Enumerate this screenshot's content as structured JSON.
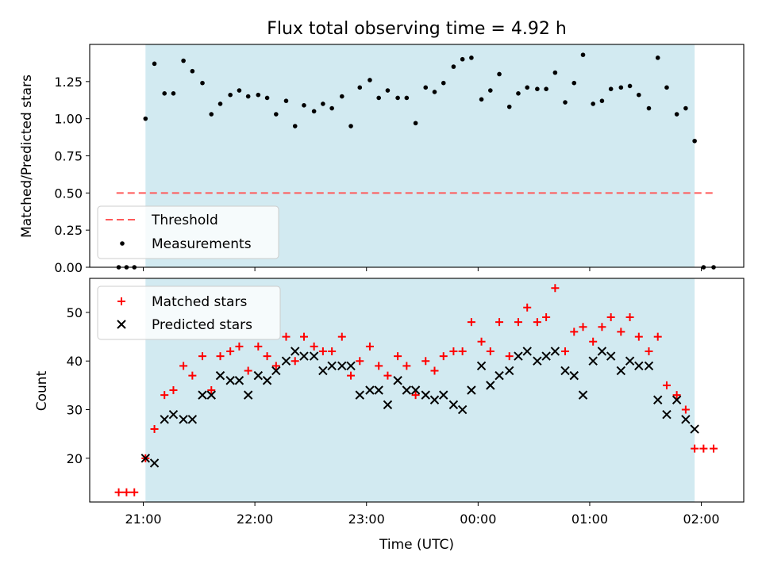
{
  "title": "Flux total observing time = 4.92 h",
  "colors": {
    "observing_window": "#add8e6",
    "threshold": "#ff5a5a",
    "measurement": "#000000",
    "matched": "#ff0000",
    "predicted": "#000000"
  },
  "shared_x": {
    "label": "Time (UTC)",
    "ticks": [
      "21:00",
      "22:00",
      "23:00",
      "00:00",
      "01:00",
      "02:00"
    ],
    "tick_hours": [
      21,
      22,
      23,
      24,
      25,
      26
    ],
    "range_hours": [
      20.52,
      26.38
    ],
    "observing_window_hours": [
      21.02,
      25.94
    ]
  },
  "chart_data": [
    {
      "type": "scatter",
      "ylabel": "Matched/Predicted stars",
      "ylim": [
        0,
        1.5
      ],
      "yticks": [
        "0.00",
        "0.25",
        "0.50",
        "0.75",
        "1.00",
        "1.25"
      ],
      "ytick_values": [
        0,
        0.25,
        0.5,
        0.75,
        1.0,
        1.25
      ],
      "legend_position": "lower-left",
      "threshold": {
        "name": "Threshold",
        "value": 0.5,
        "x_range_hours": [
          20.76,
          26.12
        ]
      },
      "series": [
        {
          "name": "Measurements",
          "points": [
            [
              20.78,
              0.0
            ],
            [
              20.85,
              0.0
            ],
            [
              20.92,
              0.0
            ],
            [
              21.02,
              1.0
            ],
            [
              21.1,
              1.37
            ],
            [
              21.19,
              1.17
            ],
            [
              21.27,
              1.17
            ],
            [
              21.36,
              1.39
            ],
            [
              21.44,
              1.32
            ],
            [
              21.53,
              1.24
            ],
            [
              21.61,
              1.03
            ],
            [
              21.69,
              1.1
            ],
            [
              21.78,
              1.16
            ],
            [
              21.86,
              1.19
            ],
            [
              21.94,
              1.15
            ],
            [
              22.03,
              1.16
            ],
            [
              22.11,
              1.14
            ],
            [
              22.19,
              1.03
            ],
            [
              22.28,
              1.12
            ],
            [
              22.36,
              0.95
            ],
            [
              22.44,
              1.09
            ],
            [
              22.53,
              1.05
            ],
            [
              22.61,
              1.1
            ],
            [
              22.69,
              1.07
            ],
            [
              22.78,
              1.15
            ],
            [
              22.86,
              0.95
            ],
            [
              22.94,
              1.21
            ],
            [
              23.03,
              1.26
            ],
            [
              23.11,
              1.14
            ],
            [
              23.19,
              1.19
            ],
            [
              23.28,
              1.14
            ],
            [
              23.36,
              1.14
            ],
            [
              23.44,
              0.97
            ],
            [
              23.53,
              1.21
            ],
            [
              23.61,
              1.18
            ],
            [
              23.69,
              1.24
            ],
            [
              23.78,
              1.35
            ],
            [
              23.86,
              1.4
            ],
            [
              23.94,
              1.41
            ],
            [
              24.03,
              1.13
            ],
            [
              24.11,
              1.19
            ],
            [
              24.19,
              1.3
            ],
            [
              24.28,
              1.08
            ],
            [
              24.36,
              1.17
            ],
            [
              24.44,
              1.21
            ],
            [
              24.53,
              1.2
            ],
            [
              24.61,
              1.2
            ],
            [
              24.69,
              1.31
            ],
            [
              24.78,
              1.11
            ],
            [
              24.86,
              1.24
            ],
            [
              24.94,
              1.43
            ],
            [
              25.03,
              1.1
            ],
            [
              25.11,
              1.12
            ],
            [
              25.19,
              1.2
            ],
            [
              25.28,
              1.21
            ],
            [
              25.36,
              1.22
            ],
            [
              25.44,
              1.16
            ],
            [
              25.53,
              1.07
            ],
            [
              25.61,
              1.41
            ],
            [
              25.69,
              1.21
            ],
            [
              25.78,
              1.03
            ],
            [
              25.86,
              1.07
            ],
            [
              25.94,
              0.85
            ],
            [
              26.02,
              0.0
            ],
            [
              26.11,
              0.0
            ]
          ]
        }
      ]
    },
    {
      "type": "scatter",
      "ylabel": "Count",
      "ylim": [
        11,
        57
      ],
      "yticks": [
        "20",
        "30",
        "40",
        "50"
      ],
      "ytick_values": [
        20,
        30,
        40,
        50
      ],
      "legend_position": "upper-left",
      "series": [
        {
          "name": "Matched stars",
          "marker": "plus",
          "points": [
            [
              20.78,
              13
            ],
            [
              20.85,
              13
            ],
            [
              20.92,
              13
            ],
            [
              21.02,
              20
            ],
            [
              21.1,
              26
            ],
            [
              21.19,
              33
            ],
            [
              21.27,
              34
            ],
            [
              21.36,
              39
            ],
            [
              21.44,
              37
            ],
            [
              21.53,
              41
            ],
            [
              21.61,
              34
            ],
            [
              21.69,
              41
            ],
            [
              21.78,
              42
            ],
            [
              21.86,
              43
            ],
            [
              21.94,
              38
            ],
            [
              22.03,
              43
            ],
            [
              22.11,
              41
            ],
            [
              22.19,
              39
            ],
            [
              22.28,
              45
            ],
            [
              22.36,
              40
            ],
            [
              22.44,
              45
            ],
            [
              22.53,
              43
            ],
            [
              22.61,
              42
            ],
            [
              22.69,
              42
            ],
            [
              22.78,
              45
            ],
            [
              22.86,
              37
            ],
            [
              22.94,
              40
            ],
            [
              23.03,
              43
            ],
            [
              23.11,
              39
            ],
            [
              23.19,
              37
            ],
            [
              23.28,
              41
            ],
            [
              23.36,
              39
            ],
            [
              23.44,
              33
            ],
            [
              23.53,
              40
            ],
            [
              23.61,
              38
            ],
            [
              23.69,
              41
            ],
            [
              23.78,
              42
            ],
            [
              23.86,
              42
            ],
            [
              23.94,
              48
            ],
            [
              24.03,
              44
            ],
            [
              24.11,
              42
            ],
            [
              24.19,
              48
            ],
            [
              24.28,
              41
            ],
            [
              24.36,
              48
            ],
            [
              24.44,
              51
            ],
            [
              24.53,
              48
            ],
            [
              24.61,
              49
            ],
            [
              24.69,
              55
            ],
            [
              24.78,
              42
            ],
            [
              24.86,
              46
            ],
            [
              24.94,
              47
            ],
            [
              25.03,
              44
            ],
            [
              25.11,
              47
            ],
            [
              25.19,
              49
            ],
            [
              25.28,
              46
            ],
            [
              25.36,
              49
            ],
            [
              25.44,
              45
            ],
            [
              25.53,
              42
            ],
            [
              25.61,
              45
            ],
            [
              25.69,
              35
            ],
            [
              25.78,
              33
            ],
            [
              25.86,
              30
            ],
            [
              25.94,
              22
            ],
            [
              26.02,
              22
            ],
            [
              26.11,
              22
            ]
          ]
        },
        {
          "name": "Predicted stars",
          "marker": "cross",
          "points": [
            [
              21.02,
              20
            ],
            [
              21.1,
              19
            ],
            [
              21.19,
              28
            ],
            [
              21.27,
              29
            ],
            [
              21.36,
              28
            ],
            [
              21.44,
              28
            ],
            [
              21.53,
              33
            ],
            [
              21.61,
              33
            ],
            [
              21.69,
              37
            ],
            [
              21.78,
              36
            ],
            [
              21.86,
              36
            ],
            [
              21.94,
              33
            ],
            [
              22.03,
              37
            ],
            [
              22.11,
              36
            ],
            [
              22.19,
              38
            ],
            [
              22.28,
              40
            ],
            [
              22.36,
              42
            ],
            [
              22.44,
              41
            ],
            [
              22.53,
              41
            ],
            [
              22.61,
              38
            ],
            [
              22.69,
              39
            ],
            [
              22.78,
              39
            ],
            [
              22.86,
              39
            ],
            [
              22.94,
              33
            ],
            [
              23.03,
              34
            ],
            [
              23.11,
              34
            ],
            [
              23.19,
              31
            ],
            [
              23.28,
              36
            ],
            [
              23.36,
              34
            ],
            [
              23.44,
              34
            ],
            [
              23.53,
              33
            ],
            [
              23.61,
              32
            ],
            [
              23.69,
              33
            ],
            [
              23.78,
              31
            ],
            [
              23.86,
              30
            ],
            [
              23.94,
              34
            ],
            [
              24.03,
              39
            ],
            [
              24.11,
              35
            ],
            [
              24.19,
              37
            ],
            [
              24.28,
              38
            ],
            [
              24.36,
              41
            ],
            [
              24.44,
              42
            ],
            [
              24.53,
              40
            ],
            [
              24.61,
              41
            ],
            [
              24.69,
              42
            ],
            [
              24.78,
              38
            ],
            [
              24.86,
              37
            ],
            [
              24.94,
              33
            ],
            [
              25.03,
              40
            ],
            [
              25.11,
              42
            ],
            [
              25.19,
              41
            ],
            [
              25.28,
              38
            ],
            [
              25.36,
              40
            ],
            [
              25.44,
              39
            ],
            [
              25.53,
              39
            ],
            [
              25.61,
              32
            ],
            [
              25.69,
              29
            ],
            [
              25.78,
              32
            ],
            [
              25.86,
              28
            ],
            [
              25.94,
              26
            ]
          ]
        }
      ]
    }
  ]
}
